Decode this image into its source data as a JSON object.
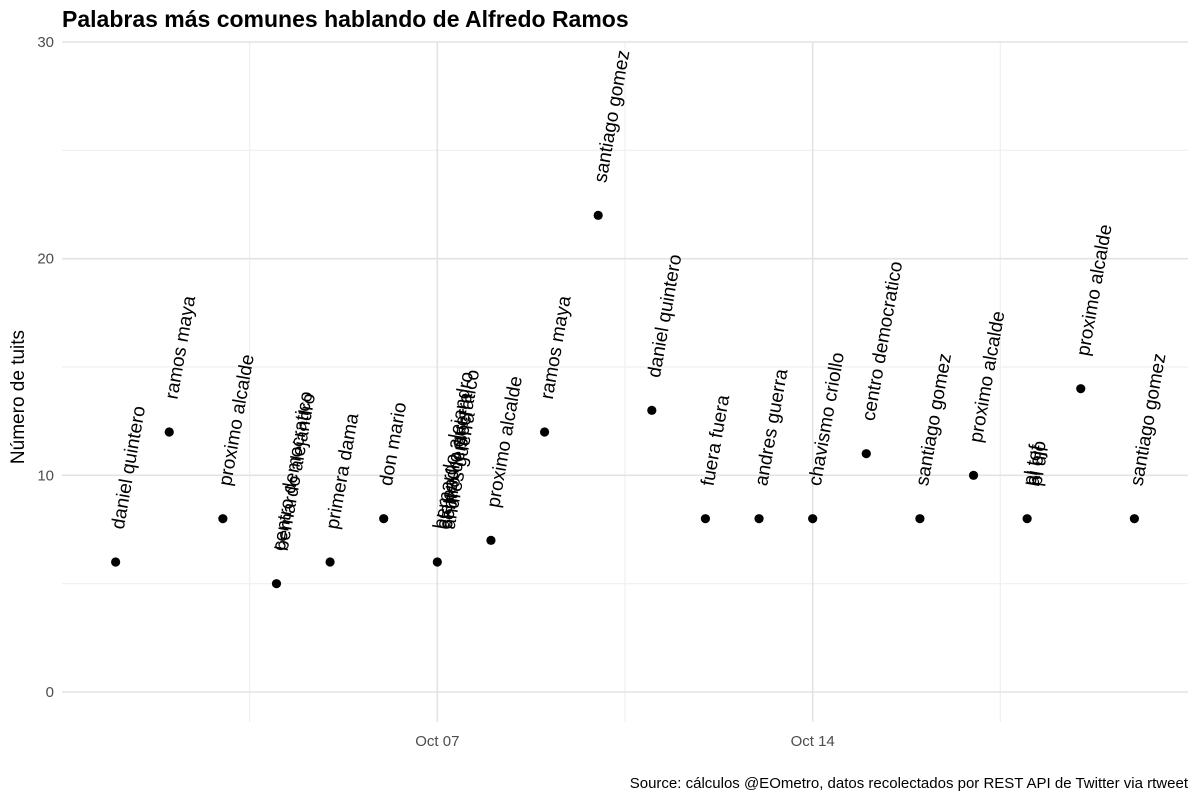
{
  "chart_data": {
    "type": "scatter",
    "title": "Palabras más comunes hablando de Alfredo Ramos",
    "xlabel": "",
    "ylabel": "Número de tuits",
    "caption": "Source: cálculos @EOmetro, datos recolectados por REST API de Twitter via rtweet",
    "xlim": [
      "2018-09-30",
      "2018-10-21"
    ],
    "ylim": [
      0,
      30
    ],
    "x_ticks": [
      {
        "date": "2018-10-07",
        "label": "Oct 07"
      },
      {
        "date": "2018-10-14",
        "label": "Oct 14"
      }
    ],
    "y_ticks": [
      0,
      10,
      20,
      30
    ],
    "grid": true,
    "points": [
      {
        "x": "2018-10-01",
        "y": 6,
        "labels": [
          "daniel quintero"
        ]
      },
      {
        "x": "2018-10-02",
        "y": 12,
        "labels": [
          "ramos maya"
        ]
      },
      {
        "x": "2018-10-03",
        "y": 8,
        "labels": [
          "proximo alcalde"
        ]
      },
      {
        "x": "2018-10-04",
        "y": 5,
        "labels": [
          "centro democratico",
          "bernardo alejandro"
        ]
      },
      {
        "x": "2018-10-05",
        "y": 6,
        "labels": [
          "primera dama"
        ]
      },
      {
        "x": "2018-10-06",
        "y": 8,
        "labels": [
          "don mario"
        ]
      },
      {
        "x": "2018-10-07",
        "y": 6,
        "labels": [
          "bernardo alejandro",
          "alejandro guerra",
          "centro democratico",
          "andres guerra"
        ]
      },
      {
        "x": "2018-10-08",
        "y": 7,
        "labels": [
          "proximo alcalde"
        ]
      },
      {
        "x": "2018-10-09",
        "y": 12,
        "labels": [
          "ramos maya"
        ]
      },
      {
        "x": "2018-10-10",
        "y": 22,
        "labels": [
          "santiago gomez"
        ]
      },
      {
        "x": "2018-10-11",
        "y": 13,
        "labels": [
          "daniel quintero"
        ]
      },
      {
        "x": "2018-10-12",
        "y": 8,
        "labels": [
          "fuera fuera"
        ]
      },
      {
        "x": "2018-10-13",
        "y": 8,
        "labels": [
          "andres guerra"
        ]
      },
      {
        "x": "2018-10-14",
        "y": 8,
        "labels": [
          "chavismo criollo"
        ]
      },
      {
        "x": "2018-10-15",
        "y": 11,
        "labels": [
          "centro democratico"
        ]
      },
      {
        "x": "2018-10-16",
        "y": 8,
        "labels": [
          "santiago gomez"
        ]
      },
      {
        "x": "2018-10-17",
        "y": 10,
        "labels": [
          "proximo alcalde"
        ]
      },
      {
        "x": "2018-10-18",
        "y": 8,
        "labels": [
          "pl tef",
          "al ejo",
          "pl ulf"
        ]
      },
      {
        "x": "2018-10-19",
        "y": 14,
        "labels": [
          "proximo alcalde"
        ]
      },
      {
        "x": "2018-10-20",
        "y": 8,
        "labels": [
          "santiago gomez"
        ]
      }
    ]
  }
}
